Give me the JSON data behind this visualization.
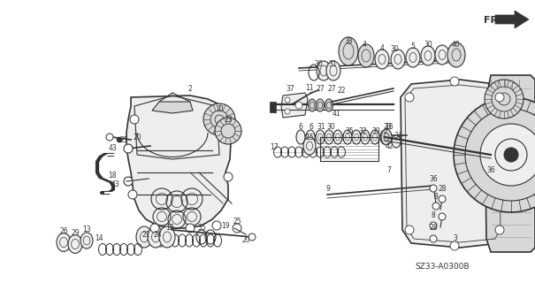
{
  "background_color": "#ffffff",
  "diagram_code": "SZ33-A0300B",
  "fr_label": "FR.",
  "fig_width": 6.05,
  "fig_height": 3.2,
  "dpi": 100,
  "line_color": "#333333",
  "gray_fill": "#d8d8d8",
  "light_fill": "#eeeeee"
}
